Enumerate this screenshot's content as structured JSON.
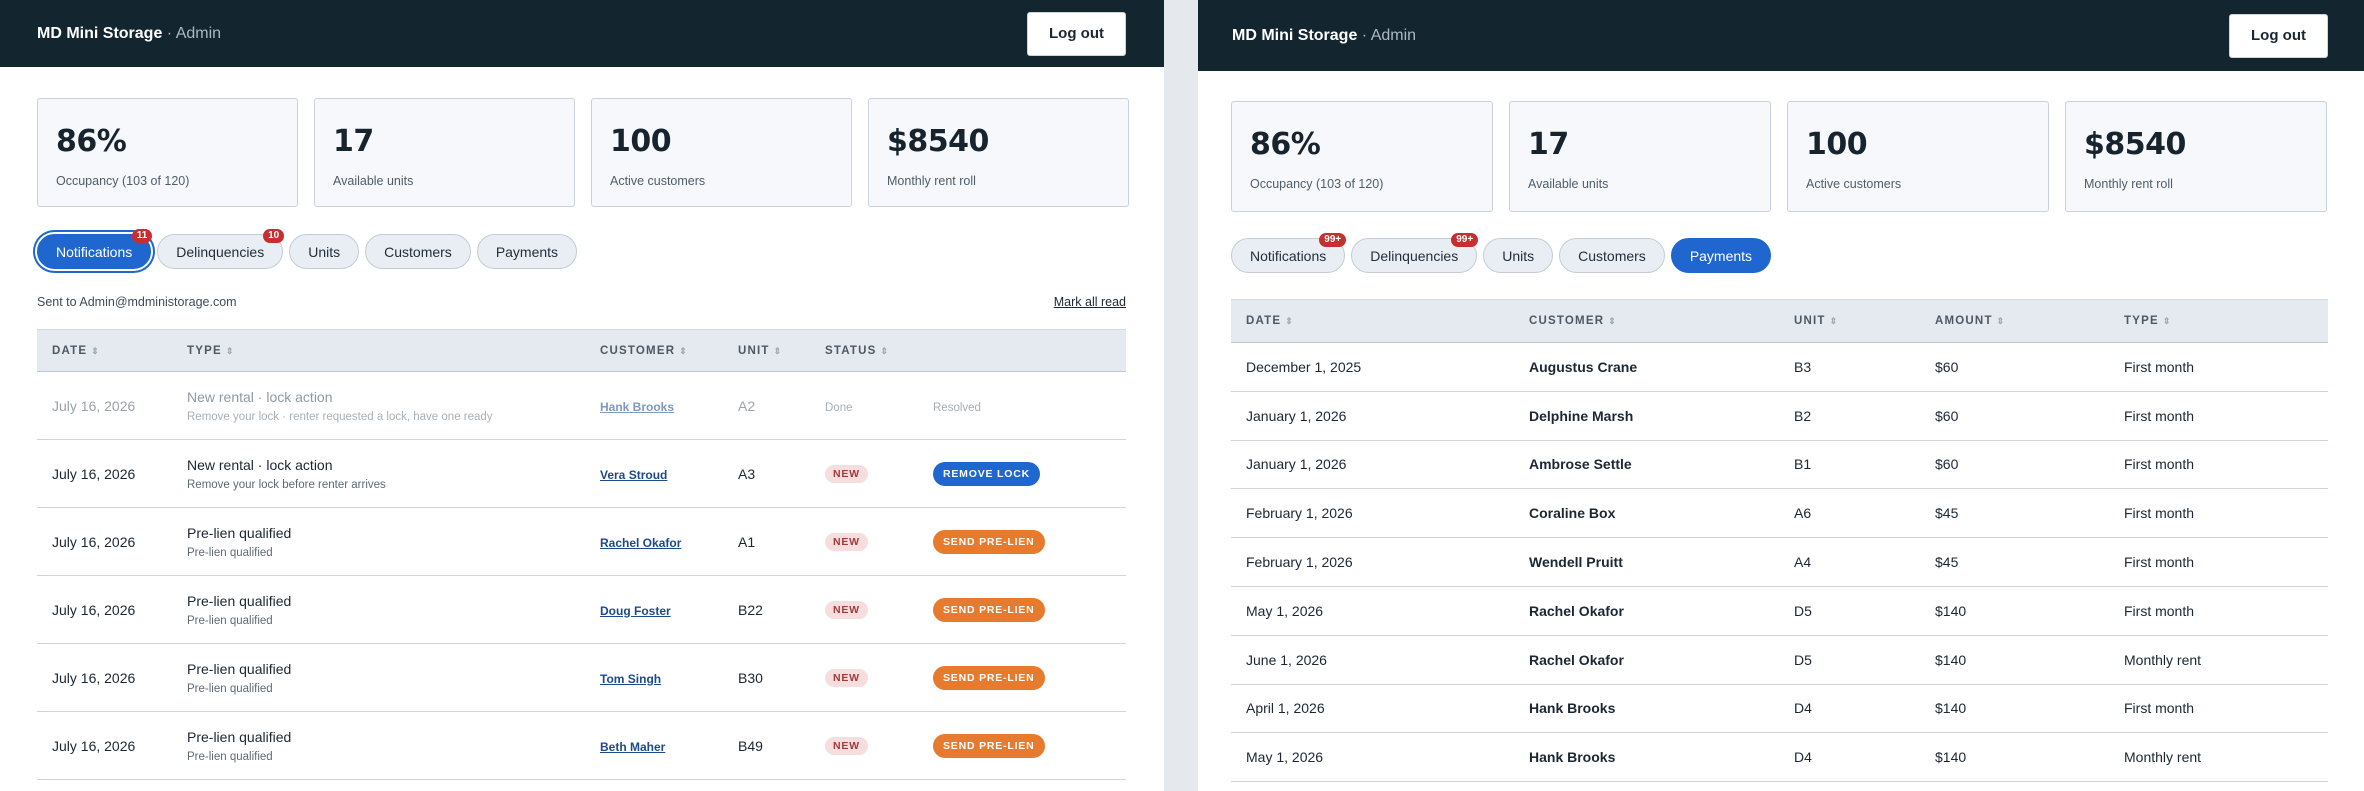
{
  "left": {
    "brand": "MD Mini Storage",
    "brand_sub": "· Admin",
    "logout": "Log out",
    "stats": [
      {
        "value": "86%",
        "label": "Occupancy (103 of 120)"
      },
      {
        "value": "17",
        "label": "Available units"
      },
      {
        "value": "100",
        "label": "Active customers"
      },
      {
        "value": "$8540",
        "label": "Monthly rent roll"
      }
    ],
    "tabs": [
      {
        "label": "Notifications",
        "badge": "11",
        "active": true
      },
      {
        "label": "Delinquencies",
        "badge": "10"
      },
      {
        "label": "Units"
      },
      {
        "label": "Customers"
      },
      {
        "label": "Payments"
      }
    ],
    "sent_to": "Sent to Admin@mdministorage.com",
    "mark_all_read": "Mark all read",
    "columns": [
      "DATE",
      "TYPE",
      "CUSTOMER",
      "UNIT",
      "STATUS"
    ],
    "rows": [
      {
        "date": "July 16, 2026",
        "type": "New rental · lock action",
        "sub": "Remove your lock · renter requested a lock, have one ready",
        "customer": "Hank Brooks",
        "unit": "A2",
        "status": "Done",
        "action": "Resolved"
      },
      {
        "date": "July 16, 2026",
        "type": "New rental · lock action",
        "sub": "Remove your lock before renter arrives",
        "customer": "Vera Stroud",
        "unit": "A3",
        "status": "NEW",
        "action": "REMOVE LOCK"
      },
      {
        "date": "July 16, 2026",
        "type": "Pre-lien qualified",
        "sub": "Pre-lien qualified",
        "customer": "Rachel Okafor",
        "unit": "A1",
        "status": "NEW",
        "action": "SEND PRE-LIEN"
      },
      {
        "date": "July 16, 2026",
        "type": "Pre-lien qualified",
        "sub": "Pre-lien qualified",
        "customer": "Doug Foster",
        "unit": "B22",
        "status": "NEW",
        "action": "SEND PRE-LIEN"
      },
      {
        "date": "July 16, 2026",
        "type": "Pre-lien qualified",
        "sub": "Pre-lien qualified",
        "customer": "Tom Singh",
        "unit": "B30",
        "status": "NEW",
        "action": "SEND PRE-LIEN"
      },
      {
        "date": "July 16, 2026",
        "type": "Pre-lien qualified",
        "sub": "Pre-lien qualified",
        "customer": "Beth Maher",
        "unit": "B49",
        "status": "NEW",
        "action": "SEND PRE-LIEN"
      }
    ]
  },
  "right": {
    "brand": "MD Mini Storage",
    "brand_sub": "· Admin",
    "logout": "Log out",
    "stats": [
      {
        "value": "86%",
        "label": "Occupancy (103 of 120)"
      },
      {
        "value": "17",
        "label": "Available units"
      },
      {
        "value": "100",
        "label": "Active customers"
      },
      {
        "value": "$8540",
        "label": "Monthly rent roll"
      }
    ],
    "tabs": [
      {
        "label": "Notifications",
        "badge": "99+"
      },
      {
        "label": "Delinquencies",
        "badge": "99+"
      },
      {
        "label": "Units"
      },
      {
        "label": "Customers"
      },
      {
        "label": "Payments",
        "active": true
      }
    ],
    "columns": [
      "DATE",
      "CUSTOMER",
      "UNIT",
      "AMOUNT",
      "TYPE"
    ],
    "rows": [
      {
        "date": "December 1, 2025",
        "customer": "Augustus Crane",
        "unit": "B3",
        "amount": "$60",
        "type": "First month"
      },
      {
        "date": "January 1, 2026",
        "customer": "Delphine Marsh",
        "unit": "B2",
        "amount": "$60",
        "type": "First month"
      },
      {
        "date": "January 1, 2026",
        "customer": "Ambrose Settle",
        "unit": "B1",
        "amount": "$60",
        "type": "First month"
      },
      {
        "date": "February 1, 2026",
        "customer": "Coraline Box",
        "unit": "A6",
        "amount": "$45",
        "type": "First month"
      },
      {
        "date": "February 1, 2026",
        "customer": "Wendell Pruitt",
        "unit": "A4",
        "amount": "$45",
        "type": "First month"
      },
      {
        "date": "May 1, 2026",
        "customer": "Rachel Okafor",
        "unit": "D5",
        "amount": "$140",
        "type": "First month"
      },
      {
        "date": "June 1, 2026",
        "customer": "Rachel Okafor",
        "unit": "D5",
        "amount": "$140",
        "type": "Monthly rent"
      },
      {
        "date": "April 1, 2026",
        "customer": "Hank Brooks",
        "unit": "D4",
        "amount": "$140",
        "type": "First month"
      },
      {
        "date": "May 1, 2026",
        "customer": "Hank Brooks",
        "unit": "D4",
        "amount": "$140",
        "type": "Monthly rent"
      }
    ]
  }
}
